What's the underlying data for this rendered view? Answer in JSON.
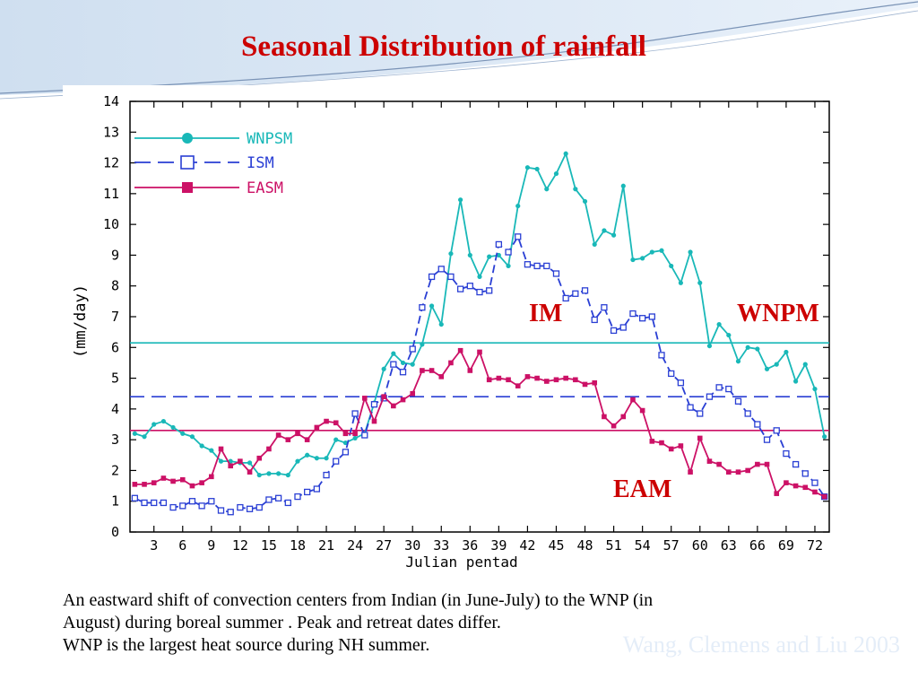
{
  "slide": {
    "title": "Seasonal Distribution of rainfall",
    "caption": [
      "An eastward shift of convection centers from Indian (in June-July) to the WNP (in",
      "August) during boreal summer . Peak and retreat dates differ.",
      "WNP is the largest heat source during NH summer."
    ],
    "citation": "Wang, Clemens and Liu 2003",
    "labels": {
      "im": "IM",
      "wnpm": "WNPM",
      "eam": "EAM"
    }
  },
  "colors": {
    "title": "#cc0000",
    "wnpsm": "#19b8b8",
    "ism": "#2a3fd4",
    "easm": "#cc1166"
  },
  "chart_data": {
    "type": "line",
    "xlabel": "Julian pentad",
    "ylabel": "(mm/day)",
    "xlim": [
      1,
      73
    ],
    "ylim": [
      0,
      14
    ],
    "x_ticks": [
      3,
      6,
      9,
      12,
      15,
      18,
      21,
      24,
      27,
      30,
      33,
      36,
      39,
      42,
      45,
      48,
      51,
      54,
      57,
      60,
      63,
      66,
      69,
      72
    ],
    "y_ticks": [
      0,
      1,
      2,
      3,
      4,
      5,
      6,
      7,
      8,
      9,
      10,
      11,
      12,
      13,
      14
    ],
    "x": [
      1,
      2,
      3,
      4,
      5,
      6,
      7,
      8,
      9,
      10,
      11,
      12,
      13,
      14,
      15,
      16,
      17,
      18,
      19,
      20,
      21,
      22,
      23,
      24,
      25,
      26,
      27,
      28,
      29,
      30,
      31,
      32,
      33,
      34,
      35,
      36,
      37,
      38,
      39,
      40,
      41,
      42,
      43,
      44,
      45,
      46,
      47,
      48,
      49,
      50,
      51,
      52,
      53,
      54,
      55,
      56,
      57,
      58,
      59,
      60,
      61,
      62,
      63,
      64,
      65,
      66,
      67,
      68,
      69,
      70,
      71,
      72,
      73
    ],
    "legend_position": "top-left",
    "series": [
      {
        "name": "WNPSM",
        "style": "solid",
        "marker": "filled-circle",
        "mean": 6.15,
        "values": [
          3.2,
          3.1,
          3.5,
          3.6,
          3.4,
          3.2,
          3.1,
          2.8,
          2.65,
          2.3,
          2.3,
          2.25,
          2.25,
          1.85,
          1.9,
          1.9,
          1.85,
          2.3,
          2.5,
          2.4,
          2.4,
          3.0,
          2.9,
          3.05,
          3.2,
          4.2,
          5.3,
          5.8,
          5.5,
          5.45,
          6.1,
          7.35,
          6.75,
          9.05,
          10.8,
          9.0,
          8.3,
          8.95,
          9.0,
          8.65,
          10.6,
          11.85,
          11.8,
          11.15,
          11.65,
          12.3,
          11.15,
          10.75,
          9.35,
          9.8,
          9.65,
          11.25,
          8.85,
          8.9,
          9.1,
          9.15,
          8.65,
          8.1,
          9.1,
          8.1,
          6.05,
          6.75,
          6.4,
          5.55,
          6.0,
          5.95,
          5.3,
          5.45,
          5.85,
          4.9,
          5.45,
          4.65,
          3.1
        ]
      },
      {
        "name": "ISM",
        "style": "dashed",
        "marker": "open-square",
        "mean": 4.4,
        "values": [
          1.1,
          0.95,
          0.95,
          0.95,
          0.8,
          0.85,
          1.0,
          0.85,
          1.0,
          0.7,
          0.65,
          0.8,
          0.75,
          0.8,
          1.05,
          1.1,
          0.95,
          1.15,
          1.3,
          1.4,
          1.85,
          2.3,
          2.6,
          3.85,
          3.15,
          4.15,
          4.35,
          5.45,
          5.2,
          5.95,
          7.3,
          8.3,
          8.55,
          8.3,
          7.9,
          8.0,
          7.8,
          7.85,
          9.35,
          9.1,
          9.6,
          8.7,
          8.65,
          8.65,
          8.4,
          7.6,
          7.75,
          7.85,
          6.9,
          7.3,
          6.55,
          6.65,
          7.1,
          6.95,
          7.0,
          5.75,
          5.15,
          4.85,
          4.05,
          3.85,
          4.4,
          4.7,
          4.65,
          4.25,
          3.85,
          3.5,
          3.0,
          3.3,
          2.55,
          2.2,
          1.9,
          1.6,
          1.15
        ]
      },
      {
        "name": "EASM",
        "style": "solid",
        "marker": "filled-square",
        "mean": 3.3,
        "values": [
          1.55,
          1.55,
          1.6,
          1.75,
          1.65,
          1.7,
          1.5,
          1.6,
          1.8,
          2.7,
          2.15,
          2.3,
          1.95,
          2.4,
          2.7,
          3.15,
          3.0,
          3.2,
          3.0,
          3.4,
          3.6,
          3.55,
          3.2,
          3.2,
          4.35,
          3.6,
          4.4,
          4.1,
          4.3,
          4.5,
          5.25,
          5.25,
          5.05,
          5.5,
          5.9,
          5.25,
          5.85,
          4.95,
          5.0,
          4.95,
          4.75,
          5.05,
          5.0,
          4.9,
          4.95,
          5.0,
          4.95,
          4.8,
          4.85,
          3.75,
          3.45,
          3.75,
          4.3,
          3.95,
          2.95,
          2.9,
          2.7,
          2.8,
          1.95,
          3.05,
          2.3,
          2.2,
          1.95,
          1.95,
          2.0,
          2.2,
          2.2,
          1.25,
          1.6,
          1.5,
          1.45,
          1.3,
          1.15
        ]
      }
    ]
  }
}
